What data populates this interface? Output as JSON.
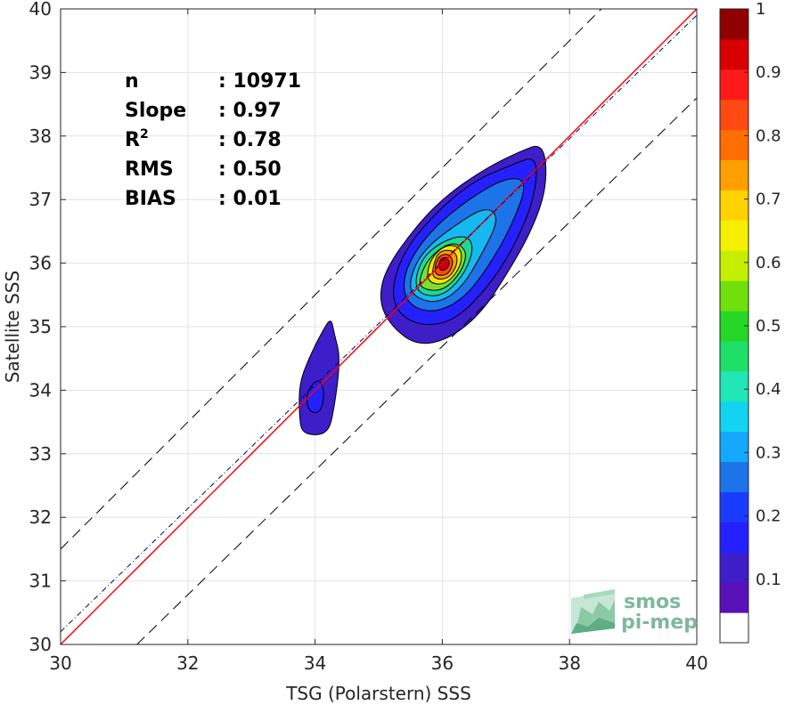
{
  "chart_data": {
    "type": "contour",
    "xlabel": "TSG (Polarstern) SSS",
    "ylabel": "Satellite SSS",
    "xlim": [
      30,
      40
    ],
    "ylim": [
      30,
      40
    ],
    "x_ticks": [
      30,
      32,
      34,
      36,
      38,
      40
    ],
    "y_ticks": [
      30,
      31,
      32,
      33,
      34,
      35,
      36,
      37,
      38,
      39,
      40
    ],
    "grid": true,
    "stats": [
      {
        "label": "n",
        "value": ": 10971"
      },
      {
        "label": "Slope",
        "value": ": 0.97"
      },
      {
        "label": "R",
        "sup": "2",
        "value": ": 0.78"
      },
      {
        "label": "RMS",
        "value": ": 0.50"
      },
      {
        "label": "BIAS",
        "value": ": 0.01"
      }
    ],
    "lines": [
      {
        "name": "one-to-one",
        "style": "solid",
        "color": "#ff0000",
        "points": [
          [
            30,
            30
          ],
          [
            40,
            40
          ]
        ]
      },
      {
        "name": "regression",
        "style": "dash-dot",
        "color": "#000080",
        "points": [
          [
            30,
            30.2
          ],
          [
            40,
            39.9
          ]
        ]
      },
      {
        "name": "upper-bound",
        "style": "dashed",
        "color": "#000000",
        "points": [
          [
            30,
            31.5
          ],
          [
            38.5,
            40
          ]
        ]
      },
      {
        "name": "lower-bound",
        "style": "dashed",
        "color": "#000000",
        "points": [
          [
            31.2,
            30
          ],
          [
            40,
            38.6
          ]
        ]
      }
    ],
    "density_centers": [
      {
        "x": 36.0,
        "y": 36.0,
        "peak": 1.0
      },
      {
        "x": 34.0,
        "y": 33.9,
        "peak": 0.25
      }
    ],
    "contours": [
      {
        "level": 0.05,
        "color": "#3d1ec8",
        "points": [
          [
            33.8,
            33.3
          ],
          [
            34.2,
            33.3
          ],
          [
            34.3,
            33.7
          ],
          [
            34.4,
            34.5
          ],
          [
            34.3,
            34.9
          ],
          [
            34.25,
            35.15
          ],
          [
            34.1,
            34.9
          ],
          [
            33.9,
            34.5
          ],
          [
            33.75,
            34.1
          ],
          [
            33.75,
            33.6
          ]
        ]
      },
      {
        "level": 0.05,
        "color": "#3d1ec8",
        "points": [
          [
            35.2,
            35.0
          ],
          [
            35.6,
            34.7
          ],
          [
            36.1,
            34.8
          ],
          [
            36.6,
            35.2
          ],
          [
            37.0,
            35.8
          ],
          [
            37.4,
            36.5
          ],
          [
            37.65,
            37.2
          ],
          [
            37.6,
            37.9
          ],
          [
            37.2,
            37.75
          ],
          [
            36.7,
            37.5
          ],
          [
            36.1,
            37.1
          ],
          [
            35.6,
            36.6
          ],
          [
            35.1,
            35.9
          ],
          [
            35.0,
            35.4
          ]
        ]
      },
      {
        "level": 0.15,
        "color": "#2420ff",
        "points": [
          [
            33.9,
            33.65
          ],
          [
            34.1,
            33.65
          ],
          [
            34.15,
            34.0
          ],
          [
            34.05,
            34.2
          ],
          [
            33.85,
            33.95
          ]
        ]
      },
      {
        "level": 0.15,
        "color": "#2420ff",
        "points": [
          [
            35.3,
            35.2
          ],
          [
            35.7,
            35.0
          ],
          [
            36.2,
            35.1
          ],
          [
            36.7,
            35.6
          ],
          [
            37.1,
            36.2
          ],
          [
            37.45,
            37.0
          ],
          [
            37.5,
            37.7
          ],
          [
            37.1,
            37.55
          ],
          [
            36.5,
            37.3
          ],
          [
            35.9,
            36.8
          ],
          [
            35.4,
            36.2
          ],
          [
            35.2,
            35.6
          ]
        ]
      },
      {
        "level": 0.25,
        "color": "#1d74e8",
        "points": [
          [
            35.4,
            35.4
          ],
          [
            35.8,
            35.2
          ],
          [
            36.3,
            35.4
          ],
          [
            36.7,
            35.9
          ],
          [
            37.1,
            36.6
          ],
          [
            37.35,
            37.3
          ],
          [
            37.0,
            37.35
          ],
          [
            36.4,
            37.0
          ],
          [
            35.8,
            36.5
          ],
          [
            35.4,
            35.9
          ]
        ]
      },
      {
        "level": 0.35,
        "color": "#16b8f0",
        "points": [
          [
            35.5,
            35.5
          ],
          [
            35.9,
            35.35
          ],
          [
            36.3,
            35.6
          ],
          [
            36.6,
            36.1
          ],
          [
            36.9,
            36.7
          ],
          [
            36.7,
            36.9
          ],
          [
            36.2,
            36.6
          ],
          [
            35.7,
            36.2
          ],
          [
            35.5,
            35.8
          ]
        ]
      },
      {
        "level": 0.45,
        "color": "#20d896",
        "points": [
          [
            35.55,
            35.55
          ],
          [
            35.95,
            35.45
          ],
          [
            36.3,
            35.75
          ],
          [
            36.5,
            36.2
          ],
          [
            36.4,
            36.45
          ],
          [
            36.0,
            36.35
          ],
          [
            35.65,
            36.05
          ]
        ]
      },
      {
        "level": 0.55,
        "color": "#7be02c",
        "points": [
          [
            35.65,
            35.6
          ],
          [
            36.0,
            35.55
          ],
          [
            36.3,
            35.85
          ],
          [
            36.4,
            36.2
          ],
          [
            36.15,
            36.35
          ],
          [
            35.8,
            36.1
          ],
          [
            35.65,
            35.8
          ]
        ]
      },
      {
        "level": 0.65,
        "color": "#f2e600",
        "points": [
          [
            35.75,
            35.7
          ],
          [
            36.05,
            35.65
          ],
          [
            36.3,
            35.95
          ],
          [
            36.3,
            36.25
          ],
          [
            36.05,
            36.3
          ],
          [
            35.8,
            36.05
          ]
        ]
      },
      {
        "level": 0.75,
        "color": "#ff9a00",
        "points": [
          [
            35.85,
            35.75
          ],
          [
            36.1,
            35.75
          ],
          [
            36.25,
            36.0
          ],
          [
            36.2,
            36.2
          ],
          [
            35.95,
            36.2
          ],
          [
            35.85,
            35.95
          ]
        ]
      },
      {
        "level": 0.85,
        "color": "#ff4a12",
        "points": [
          [
            35.9,
            35.8
          ],
          [
            36.1,
            35.82
          ],
          [
            36.18,
            36.02
          ],
          [
            36.1,
            36.15
          ],
          [
            35.95,
            36.12
          ],
          [
            35.88,
            35.95
          ]
        ]
      },
      {
        "level": 0.95,
        "color": "#c80000",
        "points": [
          [
            35.95,
            35.88
          ],
          [
            36.08,
            35.9
          ],
          [
            36.12,
            36.02
          ],
          [
            36.05,
            36.1
          ],
          [
            35.95,
            36.05
          ]
        ]
      }
    ],
    "colorbar": {
      "min": 0,
      "max": 1,
      "ticks": [
        0.1,
        0.2,
        0.3,
        0.4,
        0.5,
        0.6,
        0.7,
        0.8,
        0.9,
        1
      ],
      "tick_labels": [
        "0.1",
        "0.2",
        "0.3",
        "0.4",
        "0.5",
        "0.6",
        "0.7",
        "0.8",
        "0.9",
        "1"
      ],
      "colors": [
        "#ffffff",
        "#5a10b8",
        "#3d1ec8",
        "#2420ff",
        "#1a3cff",
        "#1d74e8",
        "#16a8ff",
        "#13d4f0",
        "#1fe6b4",
        "#1ee068",
        "#26d626",
        "#6fe00c",
        "#c4f000",
        "#f5f000",
        "#ffd200",
        "#ffa000",
        "#ff6e00",
        "#ff4a12",
        "#ff1a1a",
        "#d80000",
        "#900000"
      ]
    }
  },
  "watermark": {
    "line1": "smos",
    "line2": "pi-mep"
  }
}
